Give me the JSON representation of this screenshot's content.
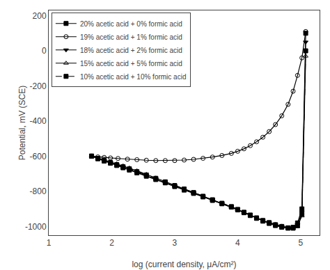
{
  "chart_data": {
    "type": "line",
    "xlabel": "log (current density, μA/cm²)",
    "ylabel": "Potential, mV (SCE)",
    "xlim": [
      1,
      5.3
    ],
    "ylim": [
      -1050,
      230
    ],
    "xticks": [
      1,
      2,
      3,
      4,
      5
    ],
    "yticks": [
      200,
      0,
      -200,
      -400,
      -600,
      -800,
      -1000
    ],
    "grid": false,
    "legend": "upper left",
    "series": [
      {
        "name": "20% acetic acid + 0% formic acid",
        "color": "black",
        "marker": "square",
        "line_style": "solid",
        "x": [
          1.68,
          1.78,
          1.88,
          1.98,
          2.08,
          2.18,
          2.28,
          2.4,
          2.55,
          2.7,
          2.85,
          3.0,
          3.15,
          3.3,
          3.45,
          3.6,
          3.75,
          3.9,
          4.0,
          4.1,
          4.2,
          4.3,
          4.4,
          4.5,
          4.6,
          4.7,
          4.8,
          4.88,
          4.95,
          5.02,
          5.08
        ],
        "values": [
          -600,
          -615,
          -628,
          -640,
          -653,
          -666,
          -679,
          -695,
          -714,
          -733,
          -752,
          -773,
          -793,
          -812,
          -832,
          -852,
          -871,
          -890,
          -906,
          -922,
          -938,
          -954,
          -970,
          -983,
          -995,
          -1005,
          -1010,
          -1005,
          -980,
          -900,
          100
        ]
      },
      {
        "name": "19% acetic acid + 1% formic acid",
        "color": "black",
        "marker": "circle-open",
        "line_style": "solid",
        "x": [
          1.68,
          1.78,
          1.88,
          1.98,
          2.1,
          2.25,
          2.4,
          2.55,
          2.7,
          2.85,
          3.0,
          3.15,
          3.3,
          3.45,
          3.6,
          3.75,
          3.9,
          4.0,
          4.1,
          4.2,
          4.3,
          4.4,
          4.5,
          4.6,
          4.7,
          4.8,
          4.88,
          4.95,
          5.02,
          5.08
        ],
        "values": [
          -600,
          -604,
          -607,
          -610,
          -613,
          -617,
          -620,
          -623,
          -625,
          -625,
          -625,
          -622,
          -618,
          -612,
          -605,
          -596,
          -584,
          -572,
          -558,
          -540,
          -518,
          -492,
          -460,
          -420,
          -370,
          -305,
          -230,
          -140,
          -40,
          110
        ]
      },
      {
        "name": "18% acetic acid + 2% formic acid",
        "color": "black",
        "marker": "triangle-down",
        "line_style": "solid",
        "x": [
          1.68,
          1.78,
          1.88,
          1.98,
          2.08,
          2.18,
          2.28,
          2.4,
          2.55,
          2.7,
          2.85,
          3.0,
          3.15,
          3.3,
          3.45,
          3.6,
          3.75,
          3.9,
          4.0,
          4.1,
          4.2,
          4.3,
          4.4,
          4.5,
          4.6,
          4.7,
          4.8,
          4.88,
          4.95,
          5.02,
          5.08
        ],
        "values": [
          -600,
          -614,
          -626,
          -638,
          -650,
          -663,
          -676,
          -692,
          -711,
          -730,
          -750,
          -770,
          -790,
          -810,
          -830,
          -850,
          -870,
          -889,
          -905,
          -921,
          -937,
          -953,
          -968,
          -980,
          -992,
          -1002,
          -1010,
          -1010,
          -990,
          -920,
          50
        ]
      },
      {
        "name": "15% acetic acid + 5% formic acid",
        "color": "black",
        "marker": "triangle-up-open",
        "line_style": "solid",
        "x": [
          1.68,
          1.78,
          1.88,
          1.98,
          2.08,
          2.18,
          2.28,
          2.4,
          2.55,
          2.7,
          2.85,
          3.0,
          3.15,
          3.3,
          3.45,
          3.6,
          3.75,
          3.9,
          4.0,
          4.1,
          4.2,
          4.3,
          4.4,
          4.5,
          4.6,
          4.7,
          4.8,
          4.88,
          4.95,
          5.02,
          5.08
        ],
        "values": [
          -598,
          -610,
          -621,
          -632,
          -643,
          -655,
          -667,
          -683,
          -703,
          -724,
          -745,
          -766,
          -787,
          -808,
          -829,
          -849,
          -869,
          -888,
          -904,
          -920,
          -936,
          -952,
          -966,
          -978,
          -989,
          -998,
          -1007,
          -1010,
          -1000,
          -940,
          -30
        ]
      },
      {
        "name": "10% acetic acid + 10% formic acid",
        "color": "black",
        "marker": "square",
        "line_style": "dashed",
        "x": [
          1.68,
          1.78,
          1.88,
          1.98,
          2.08,
          2.18,
          2.28,
          2.4,
          2.55,
          2.7,
          2.85,
          3.0,
          3.15,
          3.3,
          3.45,
          3.6,
          3.75,
          3.9,
          4.0,
          4.1,
          4.2,
          4.3,
          4.4,
          4.5,
          4.6,
          4.7,
          4.8,
          4.88,
          4.95,
          5.02,
          5.08
        ],
        "values": [
          -599,
          -612,
          -624,
          -636,
          -648,
          -660,
          -672,
          -688,
          -707,
          -726,
          -746,
          -767,
          -787,
          -807,
          -828,
          -848,
          -868,
          -887,
          -903,
          -919,
          -935,
          -951,
          -966,
          -978,
          -990,
          -1000,
          -1008,
          -1010,
          -996,
          -930,
          0
        ]
      }
    ]
  }
}
